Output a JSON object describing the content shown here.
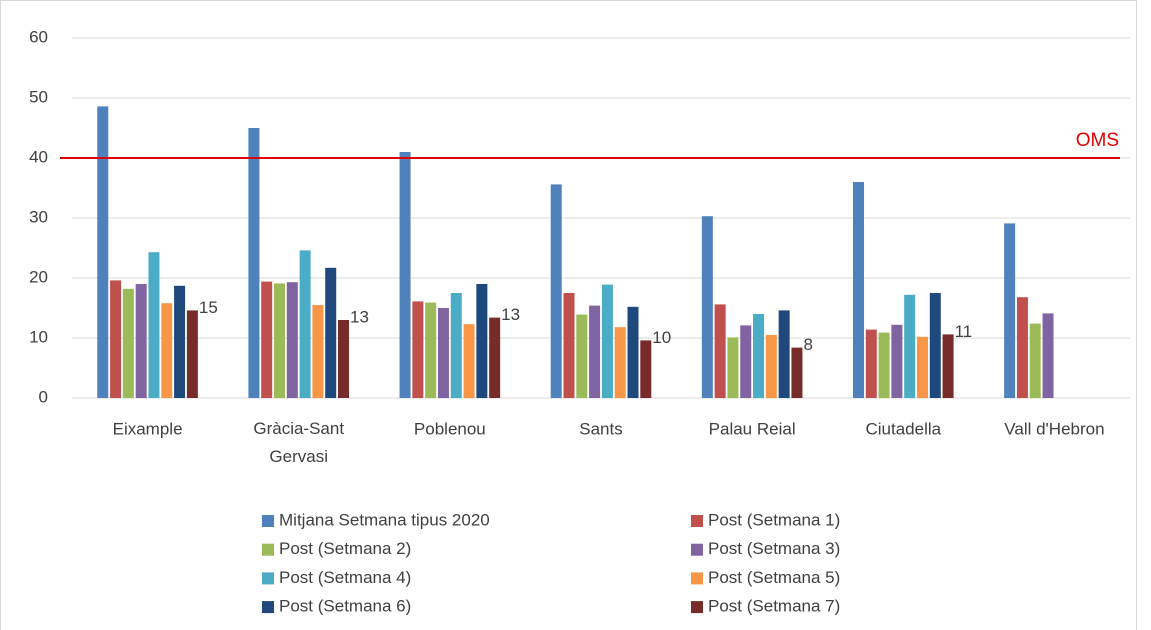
{
  "chart_data": {
    "type": "bar",
    "categories": [
      "Eixample",
      "Gràcia-Sant Gervasi",
      "Poblenou",
      "Sants",
      "Palau Reial",
      "Ciutadella",
      "Vall d'Hebron"
    ],
    "series": [
      {
        "name": "Mitjana Setmana tipus 2020",
        "color": "#4f81bd",
        "values": [
          48.6,
          45.0,
          41.0,
          35.6,
          30.3,
          36.0,
          29.1
        ]
      },
      {
        "name": "Post (Setmana 1)",
        "color": "#c0504d",
        "values": [
          19.6,
          19.4,
          16.1,
          17.5,
          15.6,
          11.4,
          16.8
        ]
      },
      {
        "name": "Post (Setmana 2)",
        "color": "#9bbb59",
        "values": [
          18.2,
          19.1,
          15.9,
          13.9,
          10.1,
          10.9,
          12.4
        ]
      },
      {
        "name": "Post (Setmana 3)",
        "color": "#8064a2",
        "values": [
          19.0,
          19.3,
          15.0,
          15.4,
          12.1,
          12.2,
          14.1
        ]
      },
      {
        "name": "Post (Setmana 4)",
        "color": "#4bacc6",
        "values": [
          24.3,
          24.6,
          17.5,
          18.9,
          14.0,
          17.2,
          null
        ]
      },
      {
        "name": "Post (Setmana 5)",
        "color": "#f79646",
        "values": [
          15.8,
          15.5,
          12.3,
          11.8,
          10.5,
          10.2,
          null
        ]
      },
      {
        "name": "Post (Setmana 6)",
        "color": "#1f497d",
        "values": [
          18.7,
          21.7,
          19.0,
          15.2,
          14.6,
          17.5,
          null
        ]
      },
      {
        "name": "Post (Setmana 7)",
        "color": "#772c2a",
        "values": [
          14.6,
          13.0,
          13.4,
          9.6,
          8.4,
          10.6,
          null
        ],
        "value_labels": [
          "15",
          "13",
          "13",
          "10",
          "8",
          "11",
          null
        ]
      }
    ],
    "reference_line": {
      "value": 40,
      "label": "OMS",
      "color": "#e00000"
    },
    "ylim": [
      0,
      60
    ],
    "yticks": [
      0,
      10,
      20,
      30,
      40,
      50,
      60
    ],
    "grid": true,
    "legend": "bottom"
  }
}
